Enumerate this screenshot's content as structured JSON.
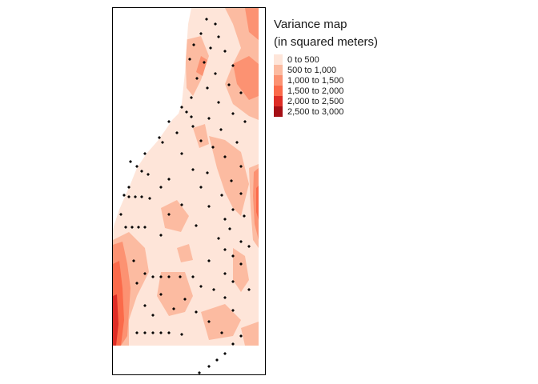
{
  "legend": {
    "title_line1": "Variance map",
    "title_line2": "(in squared meters)",
    "classes": [
      {
        "label": "0 to 500",
        "color": "#fee5d9"
      },
      {
        "label": "500 to 1,000",
        "color": "#fcbba1"
      },
      {
        "label": "1,000 to 1,500",
        "color": "#fc9272"
      },
      {
        "label": "1,500 to 2,000",
        "color": "#fb6a4a"
      },
      {
        "label": "2,000 to 2,500",
        "color": "#de2d26"
      },
      {
        "label": "2,500 to 3,000",
        "color": "#a50f15"
      }
    ]
  }
}
